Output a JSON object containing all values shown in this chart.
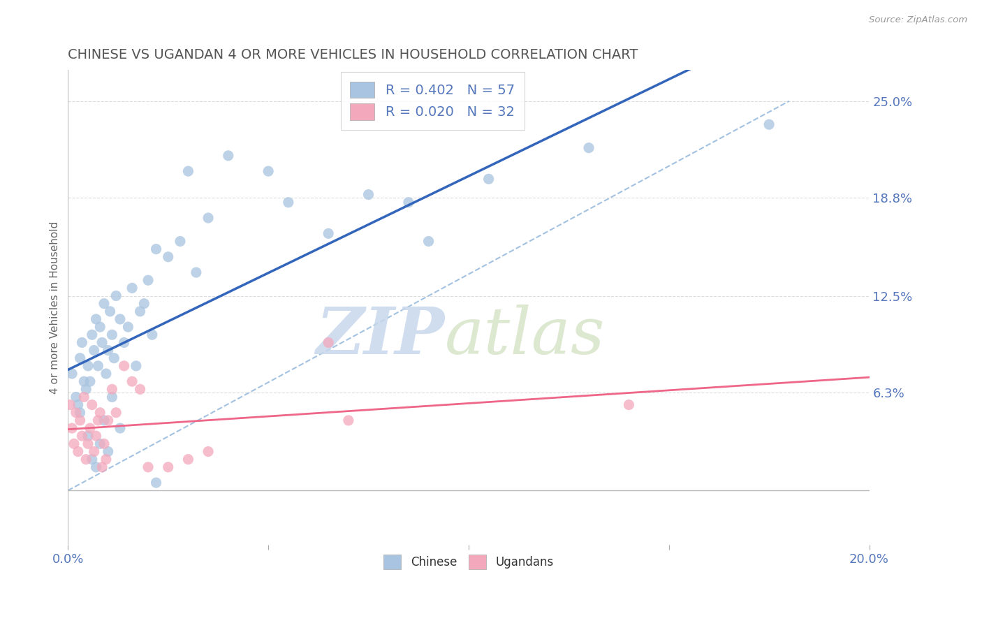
{
  "title": "CHINESE VS UGANDAN 4 OR MORE VEHICLES IN HOUSEHOLD CORRELATION CHART",
  "source": "Source: ZipAtlas.com",
  "ylabel": "4 or more Vehicles in Household",
  "ytick_labels": [
    "6.3%",
    "12.5%",
    "18.8%",
    "25.0%"
  ],
  "ytick_values": [
    6.3,
    12.5,
    18.8,
    25.0
  ],
  "xmin": 0.0,
  "xmax": 20.0,
  "ymin": -3.5,
  "ymax": 27.0,
  "chinese_R": 0.402,
  "chinese_N": 57,
  "ugandan_R": 0.02,
  "ugandan_N": 32,
  "chinese_color": "#A8C4E0",
  "ugandan_color": "#F4A8BC",
  "chinese_line_color": "#3366BB",
  "ugandan_line_color": "#EE6688",
  "watermark_zip": "ZIP",
  "watermark_atlas": "atlas",
  "chinese_scatter_x": [
    0.1,
    0.2,
    0.25,
    0.3,
    0.35,
    0.4,
    0.45,
    0.5,
    0.55,
    0.6,
    0.65,
    0.7,
    0.75,
    0.8,
    0.85,
    0.9,
    0.95,
    1.0,
    1.05,
    1.1,
    1.15,
    1.2,
    1.3,
    1.4,
    1.5,
    1.6,
    1.7,
    1.8,
    1.9,
    2.0,
    2.1,
    2.2,
    2.5,
    2.8,
    3.0,
    3.2,
    3.5,
    4.0,
    5.0,
    5.5,
    6.5,
    7.5,
    8.5,
    9.0,
    10.5,
    13.0,
    17.5,
    0.3,
    0.5,
    0.6,
    0.7,
    0.8,
    0.9,
    1.0,
    1.1,
    1.3,
    2.2
  ],
  "chinese_scatter_y": [
    7.5,
    6.0,
    5.5,
    8.5,
    9.5,
    7.0,
    6.5,
    8.0,
    7.0,
    10.0,
    9.0,
    11.0,
    8.0,
    10.5,
    9.5,
    12.0,
    7.5,
    9.0,
    11.5,
    10.0,
    8.5,
    12.5,
    11.0,
    9.5,
    10.5,
    13.0,
    8.0,
    11.5,
    12.0,
    13.5,
    10.0,
    15.5,
    15.0,
    16.0,
    20.5,
    14.0,
    17.5,
    21.5,
    20.5,
    18.5,
    16.5,
    19.0,
    18.5,
    16.0,
    20.0,
    22.0,
    23.5,
    5.0,
    3.5,
    2.0,
    1.5,
    3.0,
    4.5,
    2.5,
    6.0,
    4.0,
    0.5
  ],
  "ugandan_scatter_x": [
    0.05,
    0.1,
    0.15,
    0.2,
    0.25,
    0.3,
    0.35,
    0.4,
    0.45,
    0.5,
    0.55,
    0.6,
    0.65,
    0.7,
    0.75,
    0.8,
    0.85,
    0.9,
    0.95,
    1.0,
    1.1,
    1.2,
    1.4,
    1.6,
    1.8,
    2.0,
    2.5,
    3.0,
    3.5,
    6.5,
    7.0,
    14.0
  ],
  "ugandan_scatter_y": [
    5.5,
    4.0,
    3.0,
    5.0,
    2.5,
    4.5,
    3.5,
    6.0,
    2.0,
    3.0,
    4.0,
    5.5,
    2.5,
    3.5,
    4.5,
    5.0,
    1.5,
    3.0,
    2.0,
    4.5,
    6.5,
    5.0,
    8.0,
    7.0,
    6.5,
    1.5,
    1.5,
    2.0,
    2.5,
    9.5,
    4.5,
    5.5
  ],
  "ref_line_color": "#AACCEE",
  "ref_line_style": "--",
  "grid_color": "#DDDDDD",
  "spine_color": "#CCCCCC"
}
